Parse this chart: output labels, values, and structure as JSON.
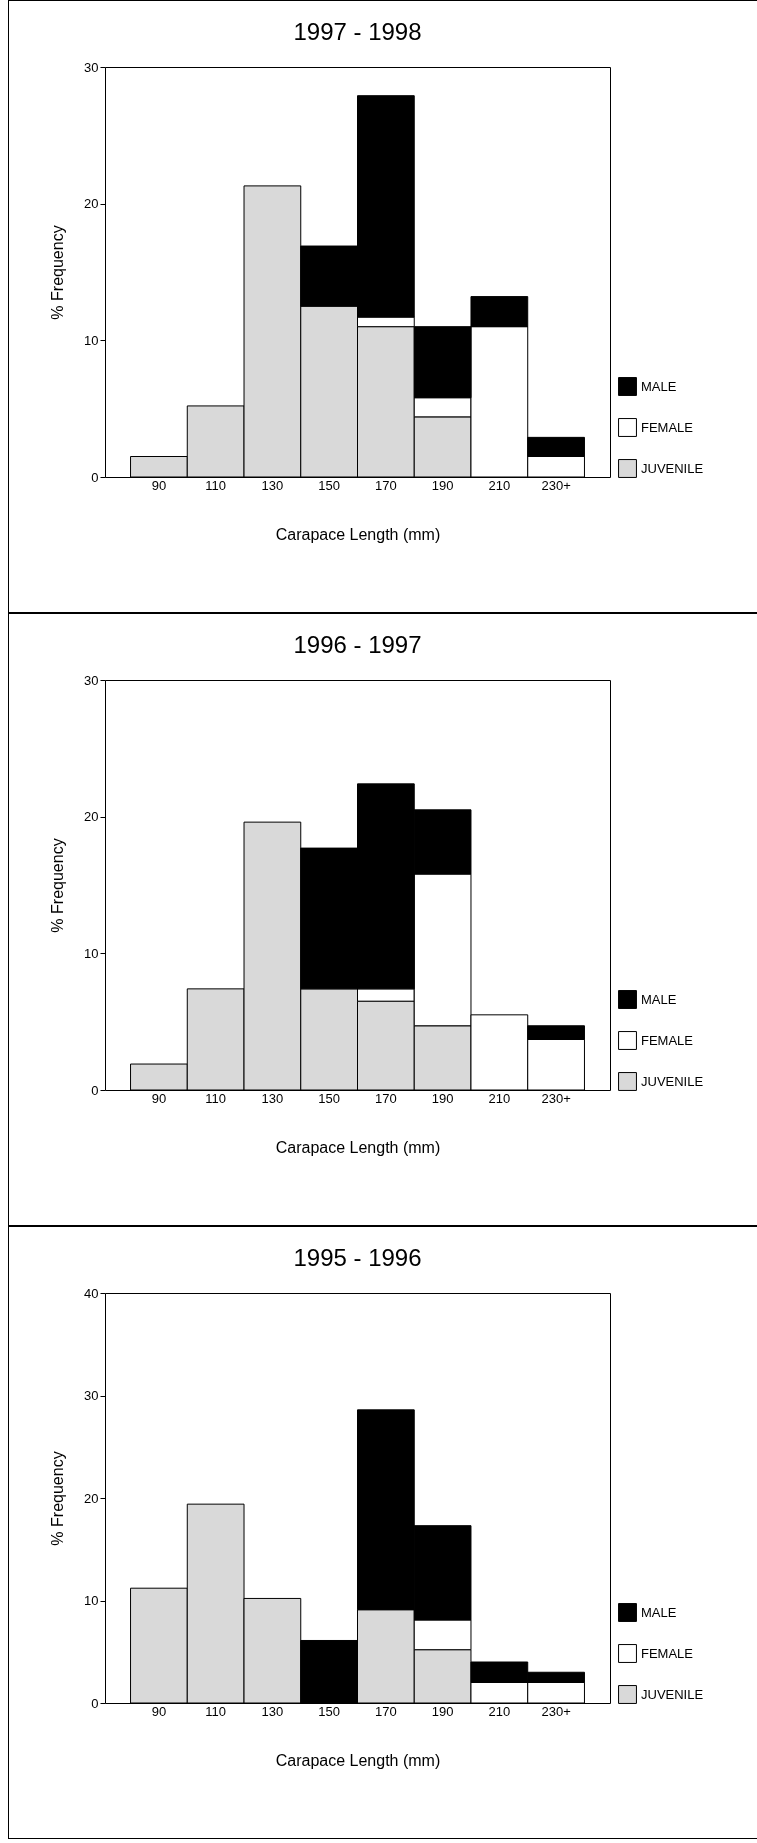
{
  "chart_data": [
    {
      "type": "bar",
      "title": "1997 - 1998",
      "xlabel": "Carapace Length (mm)",
      "ylabel": "% Frequency",
      "categories": [
        "90",
        "110",
        "130",
        "150",
        "170",
        "190",
        "210",
        "230+"
      ],
      "stacked": true,
      "ylim": [
        0,
        30
      ],
      "yticks": [
        0,
        10,
        20,
        30
      ],
      "legend": "bottom right",
      "series": [
        {
          "name": "JUVENILE",
          "color": "#d9d9d9",
          "values": [
            1.5,
            5.2,
            21.3,
            12.5,
            11.0,
            4.4,
            null,
            null
          ]
        },
        {
          "name": "FEMALE",
          "color": "#ffffff",
          "values": [
            null,
            null,
            null,
            null,
            0.7,
            1.4,
            11.0,
            1.5
          ]
        },
        {
          "name": "MALE",
          "color": "#000000",
          "values": [
            null,
            null,
            null,
            4.4,
            16.2,
            5.2,
            2.2,
            1.4
          ]
        }
      ]
    },
    {
      "type": "bar",
      "title": "1996 - 1997",
      "xlabel": "Carapace Length (mm)",
      "ylabel": "% Frequency",
      "categories": [
        "90",
        "110",
        "130",
        "150",
        "170",
        "190",
        "210",
        "230+"
      ],
      "stacked": true,
      "ylim": [
        0,
        30
      ],
      "yticks": [
        0,
        10,
        20,
        30
      ],
      "legend": "bottom right",
      "series": [
        {
          "name": "JUVENILE",
          "color": "#d9d9d9",
          "values": [
            1.9,
            7.4,
            19.6,
            7.4,
            6.5,
            4.7,
            null,
            null
          ]
        },
        {
          "name": "FEMALE",
          "color": "#ffffff",
          "values": [
            null,
            null,
            null,
            null,
            0.9,
            11.1,
            5.5,
            3.7
          ]
        },
        {
          "name": "MALE",
          "color": "#000000",
          "values": [
            null,
            null,
            null,
            10.3,
            15.0,
            4.7,
            null,
            1.0
          ]
        }
      ]
    },
    {
      "type": "bar",
      "title": "1995 - 1996",
      "xlabel": "Carapace Length (mm)",
      "ylabel": "% Frequency",
      "categories": [
        "90",
        "110",
        "130",
        "150",
        "170",
        "190",
        "210",
        "230+"
      ],
      "stacked": true,
      "ylim": [
        0,
        40
      ],
      "yticks": [
        0,
        10,
        20,
        30,
        40
      ],
      "legend": "bottom right",
      "series": [
        {
          "name": "JUVENILE",
          "color": "#d9d9d9",
          "values": [
            11.2,
            19.4,
            10.2,
            null,
            9.1,
            5.2,
            null,
            null
          ]
        },
        {
          "name": "FEMALE",
          "color": "#ffffff",
          "values": [
            null,
            null,
            null,
            null,
            null,
            2.9,
            2.0,
            2.0
          ]
        },
        {
          "name": "MALE",
          "color": "#000000",
          "values": [
            null,
            null,
            null,
            6.1,
            19.5,
            9.2,
            2.0,
            1.0
          ]
        }
      ]
    }
  ]
}
